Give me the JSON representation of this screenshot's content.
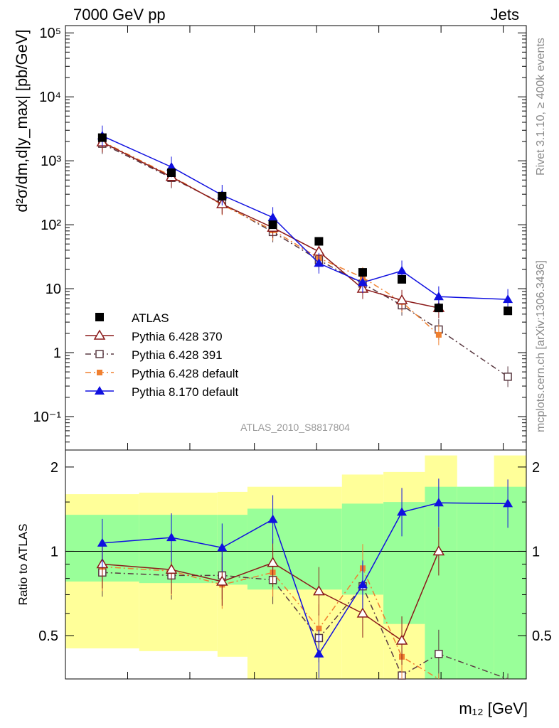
{
  "header": {
    "left": "7000 GeV pp",
    "right": "Jets"
  },
  "side_text": {
    "rivet": "Rivet 3.1.10, ≥ 400k events",
    "mcplots": "mcplots.cern.ch [arXiv:1306.3436]"
  },
  "analysis_id": "ATLAS_2010_S8817804",
  "chart_data": {
    "type": "scatter",
    "main": {
      "ylabel": "d²σ/dm,d|y_max| [pb/GeV]",
      "yscale": "log",
      "ylim": [
        0.03,
        130000
      ],
      "ytick_labels": [
        "10⁻¹",
        "1",
        "10",
        "10²",
        "10³",
        "10⁴",
        "10⁵"
      ],
      "ytick_values": [
        0.1,
        1,
        10,
        100,
        1000,
        10000,
        100000
      ],
      "legend_position": "lower-left"
    },
    "ratio": {
      "ylabel": "Ratio to ATLAS",
      "ylim": [
        0.35,
        2.3
      ],
      "ytick_labels": [
        "0.5",
        "1",
        "2"
      ],
      "ytick_values": [
        0.5,
        1,
        2
      ],
      "reference_line": 1,
      "bands": [
        {
          "x0": 0.0,
          "x1": 0.16,
          "green": [
            0.78,
            1.35
          ],
          "yellow": [
            0.45,
            1.6
          ]
        },
        {
          "x0": 0.16,
          "x1": 0.33,
          "green": [
            0.77,
            1.35
          ],
          "yellow": [
            0.44,
            1.62
          ]
        },
        {
          "x0": 0.33,
          "x1": 0.395,
          "green": [
            0.76,
            1.35
          ],
          "yellow": [
            0.42,
            1.63
          ]
        },
        {
          "x0": 0.395,
          "x1": 0.6,
          "green": [
            0.73,
            1.42
          ],
          "yellow": [
            0.35,
            1.7
          ]
        },
        {
          "x0": 0.6,
          "x1": 0.69,
          "green": [
            0.7,
            1.48
          ],
          "yellow": [
            0.35,
            1.88
          ]
        },
        {
          "x0": 0.69,
          "x1": 0.78,
          "green": [
            0.55,
            1.5
          ],
          "yellow": [
            0.35,
            1.92
          ]
        },
        {
          "x0": 0.78,
          "x1": 0.85,
          "green": [
            0.35,
            1.7
          ],
          "yellow": [
            0.35,
            2.2
          ]
        },
        {
          "x0": 0.85,
          "x1": 0.93,
          "green": [
            0.35,
            1.7
          ],
          "yellow": [
            0.35,
            1.7
          ]
        },
        {
          "x0": 0.93,
          "x1": 1.0,
          "green": [
            0.35,
            1.7
          ],
          "yellow": [
            0.35,
            2.2
          ]
        }
      ]
    },
    "xlabel": "m₁₂ [GeV]",
    "bins": [
      "1",
      "2",
      "3",
      "4",
      "5",
      "6",
      "7",
      "8",
      "9"
    ],
    "series": [
      {
        "name": "ATLAS",
        "color": "#000000",
        "marker": "filled-square",
        "line": "none",
        "x": [
          0.08,
          0.23,
          0.34,
          0.45,
          0.55,
          0.645,
          0.73,
          0.81,
          0.96
        ],
        "values": [
          2300,
          650,
          280,
          100,
          55,
          18,
          14,
          5,
          4.5
        ]
      },
      {
        "name": "Pythia 6.428 370",
        "color": "#8b1a1a",
        "marker": "open-triangle",
        "line": "solid",
        "x": [
          0.08,
          0.23,
          0.34,
          0.45,
          0.55,
          0.645,
          0.73,
          0.81
        ],
        "values": [
          1950,
          560,
          210,
          90,
          38,
          10,
          6.6,
          5
        ],
        "ratio": [
          0.9,
          0.86,
          0.78,
          0.91,
          0.72,
          0.6,
          0.48,
          1.0
        ]
      },
      {
        "name": "Pythia 6.428 391",
        "color": "#5a3a42",
        "marker": "open-square",
        "line": "dash-dot",
        "x": [
          0.08,
          0.23,
          0.34,
          0.45,
          0.55,
          0.645,
          0.73,
          0.81,
          0.96
        ],
        "values": [
          1850,
          540,
          215,
          77,
          28,
          12,
          5.5,
          2.3,
          0.42
        ],
        "ratio": [
          0.84,
          0.82,
          0.82,
          0.79,
          0.49,
          0.75,
          0.36,
          0.43,
          0.3
        ]
      },
      {
        "name": "Pythia 6.428 default",
        "color": "#f08030",
        "marker": "filled-small-square",
        "line": "dash-dot",
        "x": [
          0.08,
          0.23,
          0.34,
          0.45,
          0.55,
          0.645,
          0.73,
          0.81
        ],
        "values": [
          2000,
          580,
          205,
          82,
          30,
          15,
          6.2,
          1.9
        ],
        "ratio": [
          0.88,
          0.85,
          0.76,
          0.84,
          0.53,
          0.87,
          0.42,
          0.3
        ]
      },
      {
        "name": "Pythia 8.170 default",
        "color": "#1010e0",
        "marker": "filled-triangle",
        "line": "solid",
        "x": [
          0.08,
          0.23,
          0.34,
          0.45,
          0.55,
          0.645,
          0.73,
          0.81,
          0.96
        ],
        "values": [
          2450,
          800,
          290,
          130,
          25,
          12.5,
          19,
          7.5,
          6.8
        ],
        "ratio": [
          1.07,
          1.12,
          1.03,
          1.3,
          0.43,
          0.76,
          1.38,
          1.49,
          1.48
        ]
      }
    ]
  }
}
